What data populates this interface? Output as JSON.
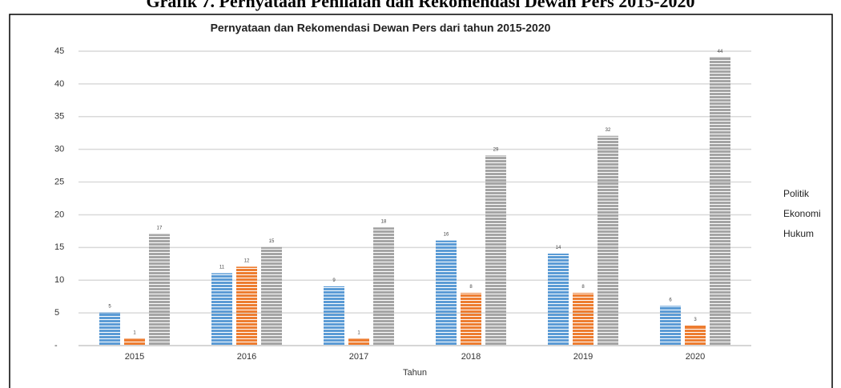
{
  "heading": "Grafik 7. Pernyataan Penilaian dan Rekomendasi Dewan Pers 2015-2020",
  "chart_data": {
    "type": "bar",
    "title": "Pernyataan dan Rekomendasi Dewan Pers dari tahun 2015-2020",
    "x_label": "Tahun",
    "categories": [
      "2015",
      "2016",
      "2017",
      "2018",
      "2019",
      "2020"
    ],
    "series": [
      {
        "name": "Politik",
        "color": "#5b9bd5",
        "values": [
          5,
          11,
          9,
          16,
          14,
          6
        ]
      },
      {
        "name": "Ekonomi",
        "color": "#ed7d31",
        "values": [
          1,
          12,
          1,
          8,
          8,
          3
        ]
      },
      {
        "name": "Hukum",
        "color": "#a5a5a5",
        "values": [
          17,
          15,
          18,
          29,
          32,
          44
        ]
      }
    ],
    "ylim": [
      0,
      45
    ],
    "yticks": [
      {
        "value": 0,
        "label": "-"
      },
      5,
      10,
      15,
      20,
      25,
      30,
      35,
      40,
      45
    ],
    "grid": true,
    "legend": "right"
  }
}
